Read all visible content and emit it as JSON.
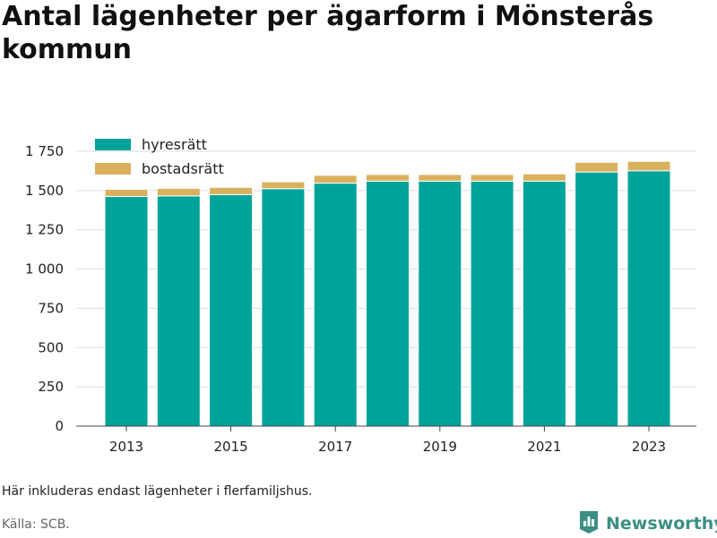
{
  "title": "Antal lägenheter per ägarform i Mönsterås kommun",
  "note": "Här inkluderas endast lägenheter i flerfamiljshus.",
  "source": "Källa: SCB.",
  "brand": {
    "name": "Newsworthy",
    "icon": "newsworthy-logo-icon",
    "color": "#3b8f84"
  },
  "chart_data": {
    "type": "bar",
    "stacked": true,
    "categories": [
      "2013",
      "2014",
      "2015",
      "2016",
      "2017",
      "2018",
      "2019",
      "2020",
      "2021",
      "2022",
      "2023"
    ],
    "x_tick_labels": [
      "2013",
      "2015",
      "2017",
      "2019",
      "2021",
      "2023"
    ],
    "series": [
      {
        "name": "hyresrätt",
        "color": "#00a39a",
        "values": [
          1462,
          1466,
          1474,
          1512,
          1547,
          1560,
          1560,
          1560,
          1560,
          1618,
          1626
        ]
      },
      {
        "name": "bostadsrätt",
        "color": "#d9b15e",
        "values": [
          46,
          48,
          46,
          44,
          50,
          42,
          42,
          42,
          46,
          62,
          60
        ]
      }
    ],
    "y_ticks": [
      0,
      250,
      500,
      750,
      1000,
      1250,
      1500,
      1750
    ],
    "y_tick_labels": [
      "0",
      "250",
      "500",
      "750",
      "1 000",
      "1 250",
      "1 500",
      "1 750"
    ],
    "ylim": [
      0,
      1750
    ],
    "grid": true,
    "legend_position": "top-left"
  }
}
